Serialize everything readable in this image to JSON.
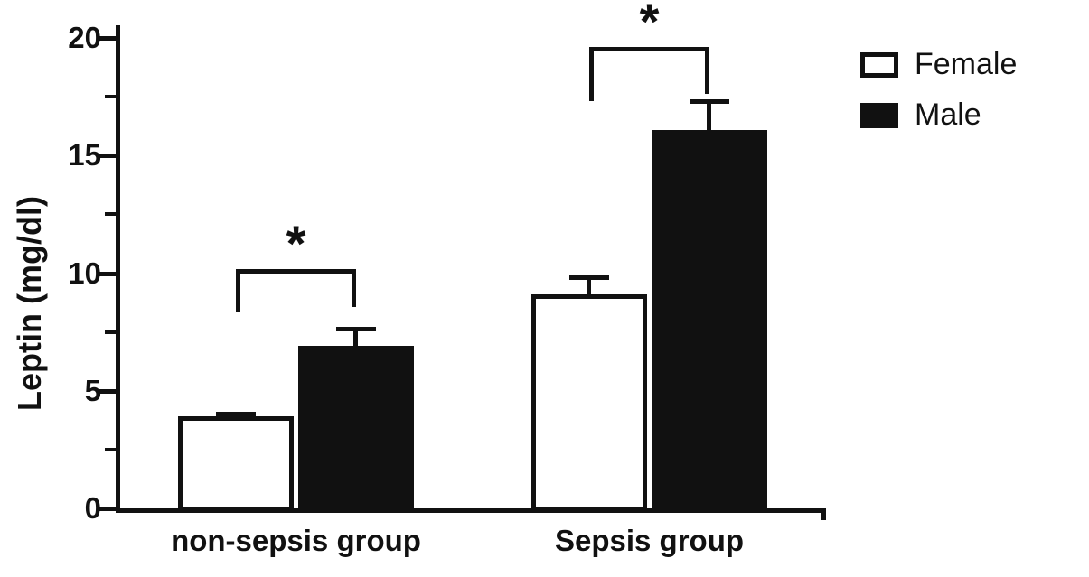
{
  "chart_data": {
    "type": "bar",
    "title": "",
    "xlabel": "",
    "ylabel": "Leptin (mg/dl)",
    "categories": [
      "non-sepsis group",
      "Sepsis group"
    ],
    "series": [
      {
        "name": "Female",
        "values": [
          3.9,
          9.1
        ],
        "errors": [
          0.2,
          0.8
        ],
        "fill": "#ffffff",
        "stroke": "#111111"
      },
      {
        "name": "Male",
        "values": [
          6.9,
          16.1
        ],
        "errors": [
          0.8,
          1.3
        ],
        "fill": "#111111",
        "stroke": "#111111"
      }
    ],
    "ylim": [
      0,
      20
    ],
    "yticks": [
      0,
      5,
      10,
      15,
      20
    ],
    "minor_yticks": [
      2.5,
      7.5,
      12.5,
      17.5
    ],
    "grid": false,
    "legend_position": "top-right",
    "axis_color": "#111111",
    "error_bars": "upper, cap style",
    "annotations": [
      {
        "type": "significance-bracket",
        "category_index": 0,
        "between": [
          "Female",
          "Male"
        ],
        "label": "*"
      },
      {
        "type": "significance-bracket",
        "category_index": 1,
        "between": [
          "Female",
          "Male"
        ],
        "label": "*"
      }
    ]
  }
}
